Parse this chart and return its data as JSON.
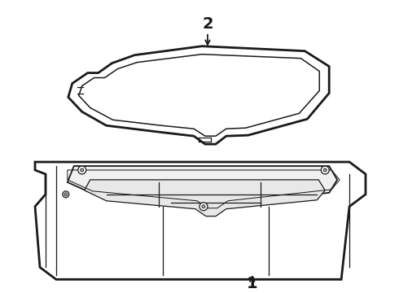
{
  "background_color": "#ffffff",
  "line_color": "#1a1a1a",
  "lw_thick": 2.0,
  "lw_med": 1.3,
  "lw_thin": 0.9,
  "label1": "1",
  "label2": "2",
  "label_fontsize": 14,
  "figsize": [
    4.9,
    3.6
  ],
  "dpi": 100
}
